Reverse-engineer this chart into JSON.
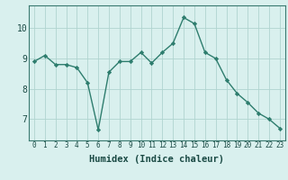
{
  "x": [
    0,
    1,
    2,
    3,
    4,
    5,
    6,
    7,
    8,
    9,
    10,
    11,
    12,
    13,
    14,
    15,
    16,
    17,
    18,
    19,
    20,
    21,
    22,
    23
  ],
  "y": [
    8.9,
    9.1,
    8.8,
    8.8,
    8.7,
    8.2,
    6.65,
    8.55,
    8.9,
    8.9,
    9.2,
    8.85,
    9.2,
    9.5,
    10.35,
    10.15,
    9.2,
    9.0,
    8.3,
    7.85,
    7.55,
    7.2,
    7.0,
    6.7
  ],
  "line_color": "#2e7d6e",
  "marker": "D",
  "marker_size": 2.2,
  "background_color": "#d9f0ee",
  "grid_color": "#b0d4d0",
  "xlabel": "Humidex (Indice chaleur)",
  "xlabel_fontsize": 7.5,
  "ylabel_ticks": [
    7,
    8,
    9,
    10
  ],
  "xlim": [
    -0.5,
    23.5
  ],
  "ylim": [
    6.3,
    10.75
  ],
  "ytick_fontsize": 7,
  "xtick_fontsize": 5.5,
  "line_width": 1.0
}
